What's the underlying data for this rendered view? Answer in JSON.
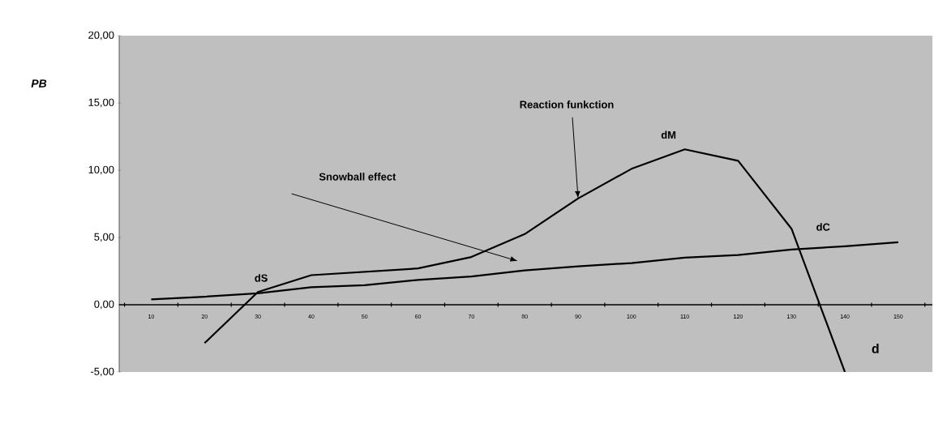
{
  "chart_data": {
    "type": "line",
    "xlabel": "d",
    "ylabel": "PB",
    "categories": [
      "10",
      "20",
      "30",
      "40",
      "50",
      "60",
      "70",
      "80",
      "90",
      "100",
      "110",
      "120",
      "130",
      "140",
      "150"
    ],
    "series": [
      {
        "color": "#000000",
        "values": [
          null,
          -2.85,
          0.95,
          2.2,
          2.45,
          2.7,
          3.55,
          5.25,
          7.9,
          10.1,
          11.55,
          10.7,
          5.65,
          -5.0,
          null
        ]
      },
      {
        "color": "#000000",
        "values": [
          0.4,
          0.6,
          0.85,
          1.3,
          1.45,
          1.85,
          2.1,
          2.55,
          2.85,
          3.1,
          3.5,
          3.7,
          4.1,
          4.35,
          4.65
        ]
      }
    ],
    "ylim": [
      -5,
      20
    ],
    "yticks": [
      {
        "value": -5,
        "label": "-5,00"
      },
      {
        "value": 0,
        "label": "0,00"
      },
      {
        "value": 5,
        "label": "5,00"
      },
      {
        "value": 10,
        "label": "10,00"
      },
      {
        "value": 15,
        "label": "15,00"
      },
      {
        "value": 20,
        "label": "20,00"
      }
    ],
    "grid": false,
    "annotations": [
      {
        "text": "Reaction funkction",
        "x": "90",
        "y": 7.9
      },
      "Snowball effect",
      {
        "text": "dS",
        "x": "30",
        "y": 0.85
      },
      {
        "text": "dM",
        "x": "110",
        "y": 11.55
      },
      {
        "text": "dC",
        "x": "130",
        "y": 4.1
      }
    ]
  }
}
